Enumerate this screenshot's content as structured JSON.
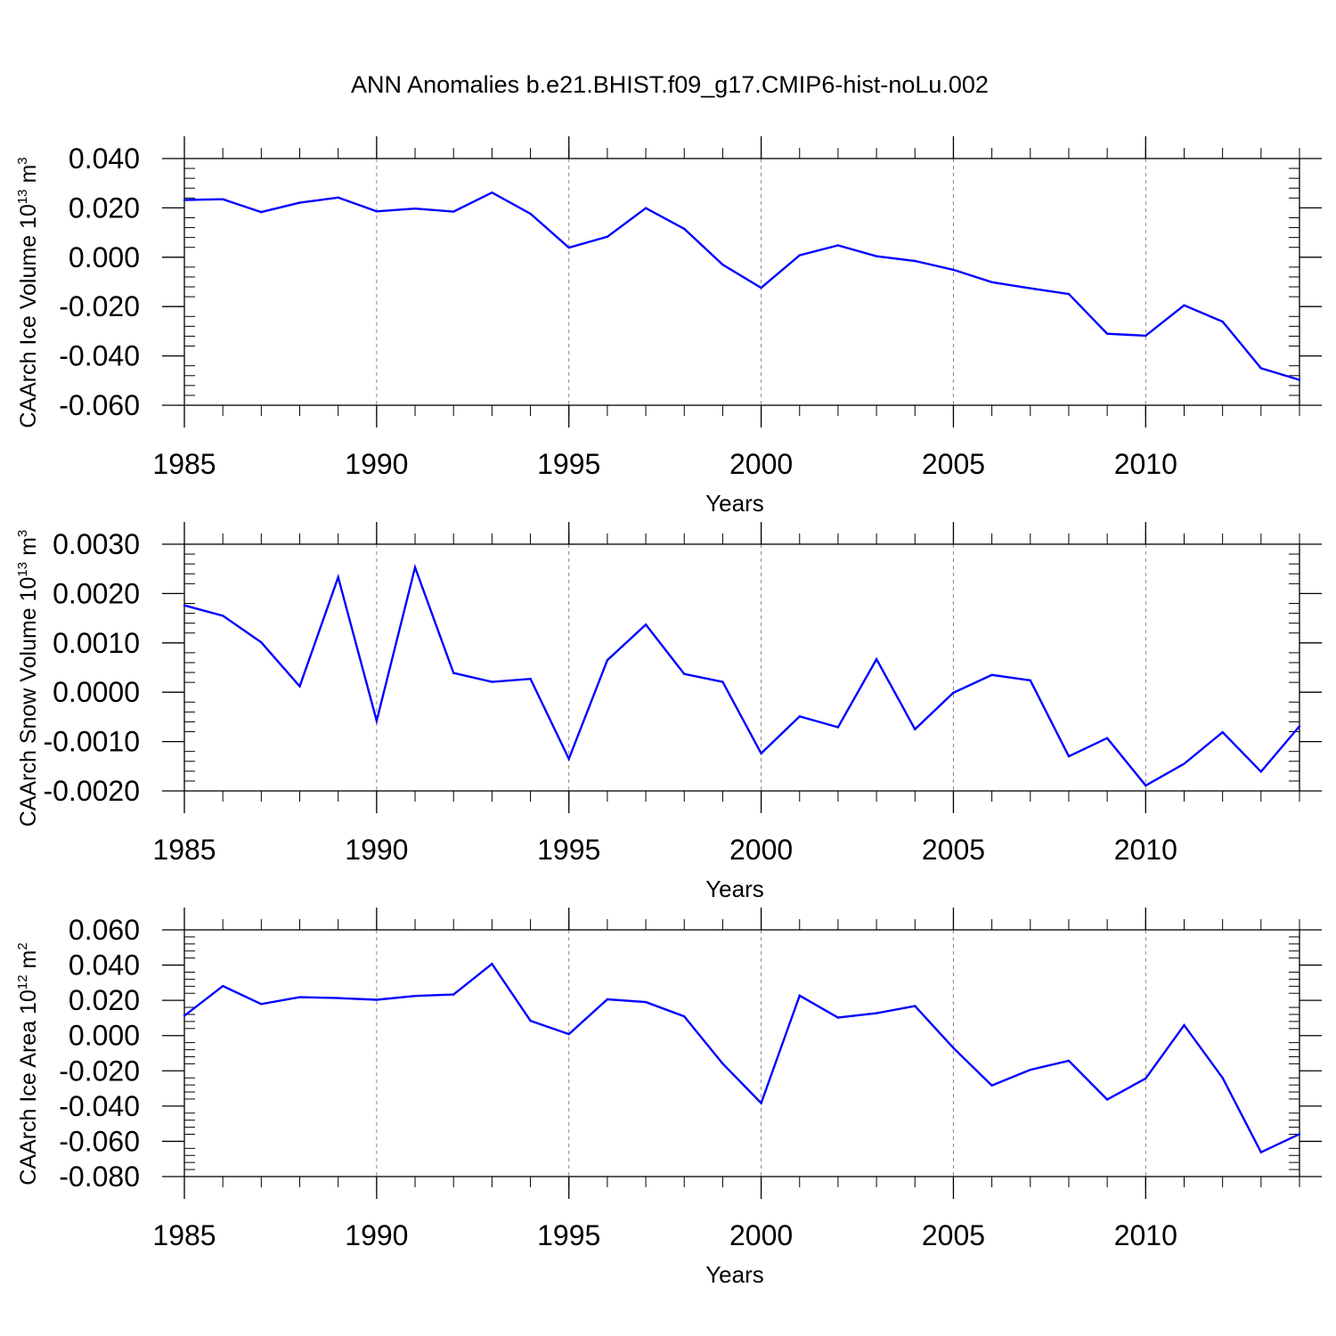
{
  "chart_data": {
    "title": "ANN Anomalies b.e21.BHIST.f09_g17.CMIP6-hist-noLu.002",
    "type": "line",
    "series_color": "#0000ff",
    "grid": "vertical dashed at major x ticks",
    "x": [
      1985,
      1986,
      1987,
      1988,
      1989,
      1990,
      1991,
      1992,
      1993,
      1994,
      1995,
      1996,
      1997,
      1998,
      1999,
      2000,
      2001,
      2002,
      2003,
      2004,
      2005,
      2006,
      2007,
      2008,
      2009,
      2010,
      2011,
      2012,
      2013,
      2014
    ],
    "panels": [
      {
        "type": "line",
        "ylabel_main": "CAArch Ice Volume 10",
        "ylabel_exp": "13",
        "ylabel_unit": " m",
        "ylabel_unit_exp": "3",
        "xlabel": "Years",
        "xlim": [
          1985,
          2014
        ],
        "ylim": [
          -0.06,
          0.04
        ],
        "yticks": [
          0.04,
          0.02,
          0.0,
          -0.02,
          -0.04,
          -0.06
        ],
        "ytick_labels": [
          "0.040",
          "0.020",
          "0.000",
          "-0.020",
          "-0.040",
          "-0.060"
        ],
        "xticks": [
          1985,
          1990,
          1995,
          2000,
          2005,
          2010
        ],
        "xtick_labels": [
          "1985",
          "1990",
          "1995",
          "2000",
          "2005",
          "2010"
        ],
        "values": [
          0.0232,
          0.0235,
          0.0183,
          0.0221,
          0.0242,
          0.0186,
          0.0197,
          0.0185,
          0.0262,
          0.0176,
          0.0039,
          0.0083,
          0.0199,
          0.0115,
          -0.003,
          -0.0124,
          0.0008,
          0.0048,
          0.0004,
          -0.0015,
          -0.0051,
          -0.0101,
          -0.0126,
          -0.0149,
          -0.031,
          -0.0318,
          -0.0195,
          -0.0261,
          -0.045,
          -0.0497
        ]
      },
      {
        "type": "line",
        "ylabel_main": "CAArch Snow Volume 10",
        "ylabel_exp": "13",
        "ylabel_unit": " m",
        "ylabel_unit_exp": "3",
        "xlabel": "Years",
        "xlim": [
          1985,
          2014
        ],
        "ylim": [
          -0.002,
          0.003
        ],
        "yticks": [
          0.003,
          0.002,
          0.001,
          0.0,
          -0.001,
          -0.002
        ],
        "ytick_labels": [
          "0.0030",
          "0.0020",
          "0.0010",
          "0.0000",
          "-0.0010",
          "-0.0020"
        ],
        "xticks": [
          1985,
          1990,
          1995,
          2000,
          2005,
          2010
        ],
        "xtick_labels": [
          "1985",
          "1990",
          "1995",
          "2000",
          "2005",
          "2010"
        ],
        "values": [
          0.00176,
          0.00155,
          0.00101,
          0.00012,
          0.00233,
          -0.00058,
          0.00253,
          0.00039,
          0.00021,
          0.00027,
          -0.00135,
          0.00065,
          0.00137,
          0.00037,
          0.00021,
          -0.00124,
          -0.00049,
          -0.00071,
          0.00067,
          -0.00075,
          -1e-05,
          0.00035,
          0.00024,
          -0.0013,
          -0.00093,
          -0.00189,
          -0.00145,
          -0.00081,
          -0.00161,
          -0.00069
        ]
      },
      {
        "type": "line",
        "ylabel_main": "CAArch Ice Area 10",
        "ylabel_exp": "12",
        "ylabel_unit": " m",
        "ylabel_unit_exp": "2",
        "xlabel": "Years",
        "xlim": [
          1985,
          2014
        ],
        "ylim": [
          -0.08,
          0.06
        ],
        "yticks": [
          0.06,
          0.04,
          0.02,
          0.0,
          -0.02,
          -0.04,
          -0.06,
          -0.08
        ],
        "ytick_labels": [
          "0.060",
          "0.040",
          "0.020",
          "0.000",
          "-0.020",
          "-0.040",
          "-0.060",
          "-0.080"
        ],
        "xticks": [
          1985,
          1990,
          1995,
          2000,
          2005,
          2010
        ],
        "xtick_labels": [
          "1985",
          "1990",
          "1995",
          "2000",
          "2005",
          "2010"
        ],
        "values": [
          0.0113,
          0.0281,
          0.0179,
          0.0218,
          0.0213,
          0.0203,
          0.0225,
          0.0233,
          0.0407,
          0.0084,
          0.0008,
          0.0206,
          0.019,
          0.0109,
          -0.0159,
          -0.0383,
          0.0227,
          0.0102,
          0.0127,
          0.0168,
          -0.007,
          -0.0283,
          -0.0194,
          -0.0143,
          -0.0363,
          -0.0243,
          0.0059,
          -0.024,
          -0.0662,
          -0.0559
        ]
      }
    ]
  }
}
